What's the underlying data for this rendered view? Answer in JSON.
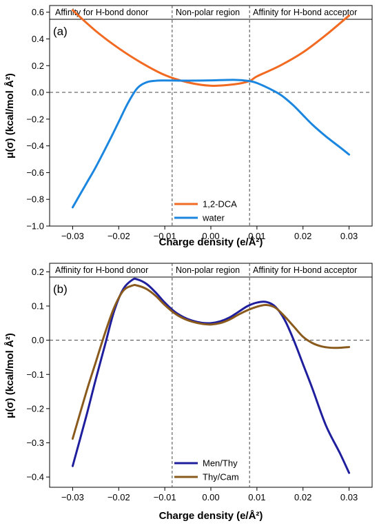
{
  "chart_data": [
    {
      "type": "line",
      "panel_label": "(a)",
      "regions": [
        "Affinity for H-bond donor",
        "Non-polar region",
        "Affinity for H-bond acceptor"
      ],
      "region_boundaries": [
        -0.0084,
        0.0084
      ],
      "xlabel": "Charge density (e/Å²)",
      "ylabel": "μ(σ) (kcal/mol Å²)",
      "xlim": [
        -0.035,
        0.035
      ],
      "ylim": [
        -1.0,
        0.65
      ],
      "xticks": [
        -0.03,
        -0.02,
        -0.01,
        0.0,
        0.01,
        0.02,
        0.03
      ],
      "xtick_labels": [
        "−0.03",
        "−0.02",
        "−0.01",
        "0.00",
        "0.01",
        "0.02",
        "0.03"
      ],
      "yticks": [
        -1.0,
        -0.8,
        -0.6,
        -0.4,
        -0.2,
        0.0,
        0.2,
        0.4,
        0.6
      ],
      "ytick_labels": [
        "−1.0",
        "−0.8",
        "−0.6",
        "−0.4",
        "−0.2",
        "0.0",
        "0.2",
        "0.4",
        "0.6"
      ],
      "legend_position": "bottom-center",
      "series": [
        {
          "name": "1,2-DCA",
          "color": "#f26a21",
          "x": [
            -0.03,
            -0.025,
            -0.02,
            -0.015,
            -0.01,
            -0.005,
            0.0,
            0.005,
            0.0084,
            0.01,
            0.015,
            0.02,
            0.025,
            0.03
          ],
          "y": [
            0.615,
            0.46,
            0.33,
            0.22,
            0.13,
            0.075,
            0.05,
            0.06,
            0.085,
            0.12,
            0.2,
            0.3,
            0.43,
            0.575
          ]
        },
        {
          "name": "water",
          "color": "#1b86e0",
          "x": [
            -0.03,
            -0.027,
            -0.025,
            -0.022,
            -0.02,
            -0.018,
            -0.016,
            -0.014,
            -0.012,
            -0.01,
            -0.005,
            0.0,
            0.005,
            0.0084,
            0.01,
            0.012,
            0.014,
            0.015,
            0.016,
            0.018,
            0.02,
            0.022,
            0.025,
            0.028,
            0.03
          ],
          "y": [
            -0.86,
            -0.68,
            -0.56,
            -0.36,
            -0.22,
            -0.08,
            0.03,
            0.075,
            0.087,
            0.089,
            0.088,
            0.09,
            0.094,
            0.085,
            0.07,
            0.04,
            0.005,
            -0.015,
            -0.04,
            -0.1,
            -0.17,
            -0.24,
            -0.33,
            -0.41,
            -0.465
          ]
        }
      ]
    },
    {
      "type": "line",
      "panel_label": "(b)",
      "regions": [
        "Affinity for H-bond donor",
        "Non-polar region",
        "Affinity for H-bond acceptor"
      ],
      "region_boundaries": [
        -0.0084,
        0.0084
      ],
      "xlabel": "Charge density (e/Å²)",
      "ylabel": "μ(σ) (kcal/mol Å²)",
      "xlim": [
        -0.035,
        0.035
      ],
      "ylim": [
        -0.43,
        0.225
      ],
      "xticks": [
        -0.03,
        -0.02,
        -0.01,
        0.0,
        0.01,
        0.02,
        0.03
      ],
      "xtick_labels": [
        "−0.03",
        "−0.02",
        "−0.01",
        "0.00",
        "0.01",
        "0.02",
        "0.03"
      ],
      "yticks": [
        -0.4,
        -0.3,
        -0.2,
        -0.1,
        0.0,
        0.1,
        0.2
      ],
      "ytick_labels": [
        "−0.4",
        "−0.3",
        "−0.2",
        "−0.1",
        "0.0",
        "0.1",
        "0.2"
      ],
      "legend_position": "bottom-center",
      "series": [
        {
          "name": "Men/Thy",
          "color": "#1f1f9e",
          "x": [
            -0.03,
            -0.027,
            -0.025,
            -0.023,
            -0.021,
            -0.019,
            -0.017,
            -0.016,
            -0.014,
            -0.012,
            -0.01,
            -0.008,
            -0.006,
            -0.004,
            -0.002,
            0.0,
            0.002,
            0.004,
            0.006,
            0.008,
            0.01,
            0.012,
            0.014,
            0.016,
            0.018,
            0.02,
            0.022,
            0.025,
            0.028,
            0.03
          ],
          "y": [
            -0.368,
            -0.22,
            -0.115,
            -0.015,
            0.085,
            0.15,
            0.177,
            0.178,
            0.165,
            0.14,
            0.11,
            0.085,
            0.068,
            0.057,
            0.051,
            0.05,
            0.055,
            0.066,
            0.083,
            0.1,
            0.11,
            0.112,
            0.098,
            0.06,
            0.0,
            -0.07,
            -0.14,
            -0.25,
            -0.33,
            -0.388
          ]
        },
        {
          "name": "Thy/Cam",
          "color": "#8a5a1c",
          "x": [
            -0.03,
            -0.027,
            -0.025,
            -0.023,
            -0.021,
            -0.019,
            -0.017,
            -0.016,
            -0.014,
            -0.012,
            -0.01,
            -0.008,
            -0.006,
            -0.004,
            -0.002,
            0.0,
            0.002,
            0.004,
            0.006,
            0.008,
            0.01,
            0.012,
            0.014,
            0.016,
            0.018,
            0.02,
            0.022,
            0.024,
            0.026,
            0.028,
            0.03
          ],
          "y": [
            -0.288,
            -0.15,
            -0.065,
            0.02,
            0.095,
            0.145,
            0.16,
            0.16,
            0.15,
            0.13,
            0.103,
            0.08,
            0.064,
            0.054,
            0.048,
            0.046,
            0.05,
            0.06,
            0.075,
            0.088,
            0.098,
            0.103,
            0.095,
            0.07,
            0.04,
            0.01,
            -0.008,
            -0.018,
            -0.022,
            -0.022,
            -0.02
          ]
        }
      ]
    }
  ]
}
